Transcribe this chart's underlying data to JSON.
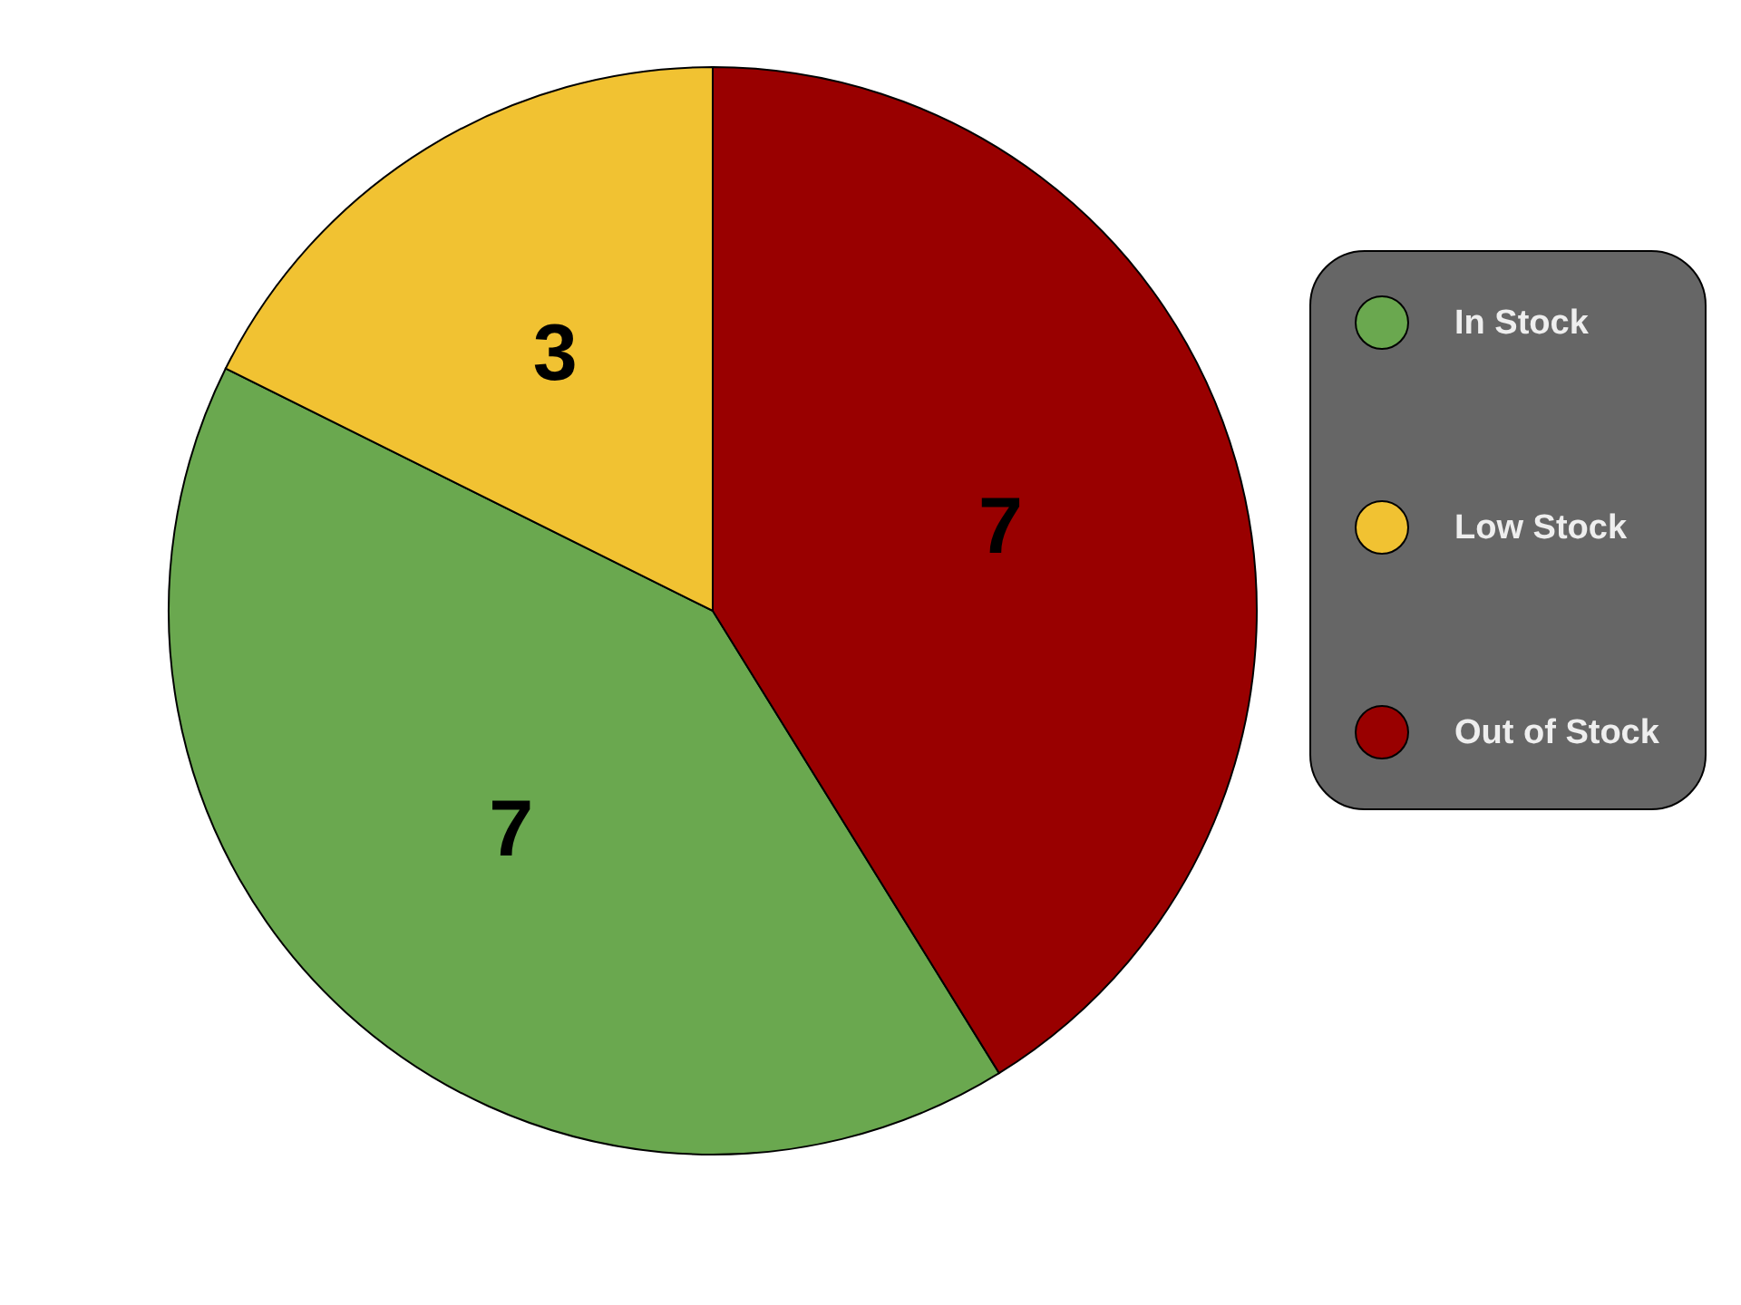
{
  "chart_data": {
    "type": "pie",
    "categories": [
      "In Stock",
      "Low Stock",
      "Out of Stock"
    ],
    "values": [
      7,
      3,
      7
    ],
    "colors": [
      "#6aa84f",
      "#f1c232",
      "#990000"
    ],
    "data_labels": true,
    "legend": "right"
  }
}
